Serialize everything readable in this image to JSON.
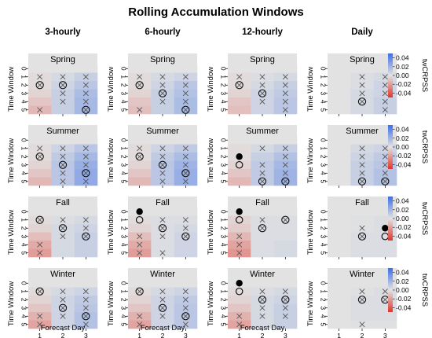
{
  "title": "Rolling Accumulation Windows",
  "columns": [
    "3-hourly",
    "6-hourly",
    "12-hourly",
    "Daily"
  ],
  "rows": [
    "Spring",
    "Summer",
    "Fall",
    "Winter"
  ],
  "xlabel": "Forecast Day",
  "ylabel": "Time Window",
  "xticks": [
    "1",
    "2",
    "3"
  ],
  "yticks": [
    "0",
    "1",
    "2",
    "3",
    "4",
    "5"
  ],
  "colorbar": {
    "label": "twCRPSS",
    "ticks": [
      "0.04",
      "0.02",
      "0.00",
      "-0.02",
      "-0.04"
    ],
    "tick_values": [
      0.04,
      0.02,
      0.0,
      -0.02,
      -0.04
    ],
    "range": [
      -0.05,
      0.05
    ]
  },
  "colors": {
    "positive": "#3a6ee8",
    "negative": "#e0352a",
    "missing": "#e2e2e2"
  },
  "marker_legend": {
    "x": "X marker",
    "circled_x": "circled X marker",
    "open_circle": "open circle",
    "filled_circle": "filled circle"
  },
  "chart_data": {
    "type": "heatmap",
    "title": "Rolling Accumulation Windows",
    "xlabel": "Forecast Day",
    "ylabel": "Time Window",
    "x": [
      1,
      2,
      3
    ],
    "y": [
      0,
      1,
      2,
      3,
      4,
      5
    ],
    "panels": [
      {
        "column": "3-hourly",
        "row": "Spring",
        "values": [
          [
            null,
            null,
            null
          ],
          [
            -0.002,
            0.004,
            0.008
          ],
          [
            -0.002,
            0.006,
            0.012
          ],
          [
            -0.004,
            0.008,
            0.016
          ],
          [
            -0.008,
            0.008,
            0.018
          ],
          [
            -0.012,
            0.008,
            0.018
          ]
        ],
        "markers": [
          [
            null,
            null,
            null
          ],
          [
            "x",
            "x",
            "x"
          ],
          [
            "cx",
            "cx",
            "x"
          ],
          [
            null,
            "x",
            "x"
          ],
          [
            null,
            "x",
            "x"
          ],
          [
            "x",
            null,
            "cx"
          ]
        ]
      },
      {
        "column": "6-hourly",
        "row": "Spring",
        "values": [
          [
            null,
            null,
            null
          ],
          [
            -0.002,
            0.004,
            0.006
          ],
          [
            -0.002,
            0.006,
            0.012
          ],
          [
            -0.004,
            0.008,
            0.014
          ],
          [
            -0.008,
            0.008,
            0.016
          ],
          [
            -0.01,
            0.008,
            0.016
          ]
        ],
        "markers": [
          [
            null,
            null,
            null
          ],
          [
            "x",
            "x",
            "x"
          ],
          [
            "cx",
            "x",
            "x"
          ],
          [
            null,
            "cx",
            "x"
          ],
          [
            null,
            "x",
            "x"
          ],
          [
            "x",
            null,
            "cx"
          ]
        ]
      },
      {
        "column": "12-hourly",
        "row": "Spring",
        "values": [
          [
            null,
            null,
            null
          ],
          [
            -0.002,
            0.002,
            0.004
          ],
          [
            -0.002,
            0.004,
            0.008
          ],
          [
            -0.004,
            0.006,
            0.01
          ],
          [
            -0.008,
            0.006,
            0.012
          ],
          [
            -0.01,
            0.006,
            0.012
          ]
        ],
        "markers": [
          [
            null,
            null,
            null
          ],
          [
            "x",
            "x",
            "x"
          ],
          [
            "cx",
            "x",
            "x"
          ],
          [
            null,
            "cx",
            "x"
          ],
          [
            null,
            "x",
            "x"
          ],
          [
            null,
            null,
            "x"
          ]
        ]
      },
      {
        "column": "Daily",
        "row": "Spring",
        "values": [
          [
            null,
            null,
            null
          ],
          [
            null,
            0.002,
            0.004
          ],
          [
            null,
            0.002,
            0.006
          ],
          [
            null,
            0.004,
            0.006
          ],
          [
            null,
            0.004,
            0.008
          ],
          [
            null,
            0.004,
            0.008
          ]
        ],
        "markers": [
          [
            null,
            null,
            null
          ],
          [
            null,
            "x",
            "x"
          ],
          [
            null,
            "x",
            "x"
          ],
          [
            null,
            "x",
            "x"
          ],
          [
            null,
            "cx",
            "x"
          ],
          [
            null,
            null,
            "x"
          ]
        ]
      },
      {
        "column": "3-hourly",
        "row": "Summer",
        "values": [
          [
            null,
            null,
            null
          ],
          [
            -0.002,
            0.006,
            0.012
          ],
          [
            -0.002,
            0.01,
            0.018
          ],
          [
            -0.004,
            0.012,
            0.022
          ],
          [
            -0.008,
            0.012,
            0.024
          ],
          [
            -0.012,
            0.012,
            0.024
          ]
        ],
        "markers": [
          [
            null,
            null,
            null
          ],
          [
            "x",
            "x",
            "x"
          ],
          [
            "cx",
            "x",
            "x"
          ],
          [
            null,
            "cx",
            "x"
          ],
          [
            null,
            "x",
            "cx"
          ],
          [
            null,
            "x",
            "x"
          ]
        ]
      },
      {
        "column": "6-hourly",
        "row": "Summer",
        "values": [
          [
            null,
            null,
            null
          ],
          [
            -0.002,
            0.006,
            0.01
          ],
          [
            -0.002,
            0.01,
            0.016
          ],
          [
            -0.004,
            0.012,
            0.02
          ],
          [
            -0.008,
            0.012,
            0.022
          ],
          [
            -0.012,
            0.012,
            0.022
          ]
        ],
        "markers": [
          [
            null,
            null,
            null
          ],
          [
            "x",
            "x",
            "x"
          ],
          [
            "cx",
            "x",
            "x"
          ],
          [
            null,
            "cx",
            "x"
          ],
          [
            null,
            "x",
            "cx"
          ],
          [
            null,
            "x",
            "x"
          ]
        ]
      },
      {
        "column": "12-hourly",
        "row": "Summer",
        "values": [
          [
            null,
            null,
            null
          ],
          [
            -0.002,
            0.004,
            0.008
          ],
          [
            -0.002,
            0.008,
            0.014
          ],
          [
            -0.004,
            0.01,
            0.018
          ],
          [
            -0.008,
            0.01,
            0.02
          ],
          [
            -0.012,
            0.01,
            0.02
          ]
        ],
        "markers": [
          [
            null,
            null,
            null
          ],
          [
            null,
            "x",
            "x"
          ],
          [
            "filled",
            null,
            "x"
          ],
          [
            "open",
            "x",
            "x"
          ],
          [
            null,
            "x",
            "x"
          ],
          [
            null,
            "cx",
            "cx"
          ]
        ]
      },
      {
        "column": "Daily",
        "row": "Summer",
        "values": [
          [
            null,
            null,
            null
          ],
          [
            null,
            0.004,
            0.006
          ],
          [
            null,
            0.006,
            0.01
          ],
          [
            null,
            0.008,
            0.012
          ],
          [
            null,
            0.008,
            0.014
          ],
          [
            null,
            0.008,
            0.014
          ]
        ],
        "markers": [
          [
            null,
            null,
            null
          ],
          [
            null,
            "x",
            "x"
          ],
          [
            null,
            "x",
            "x"
          ],
          [
            null,
            "x",
            "x"
          ],
          [
            null,
            "x",
            "x"
          ],
          [
            null,
            "cx",
            "cx"
          ]
        ]
      },
      {
        "column": "3-hourly",
        "row": "Fall",
        "values": [
          [
            null,
            null,
            null
          ],
          [
            -0.002,
            0.002,
            0.004
          ],
          [
            -0.004,
            0.004,
            0.006
          ],
          [
            -0.01,
            0.004,
            0.008
          ],
          [
            -0.016,
            0.004,
            0.008
          ],
          [
            -0.02,
            0.004,
            0.008
          ]
        ],
        "markers": [
          [
            null,
            null,
            null
          ],
          [
            "cx",
            "x",
            "x"
          ],
          [
            null,
            "cx",
            "x"
          ],
          [
            null,
            "x",
            "cx"
          ],
          [
            "x",
            null,
            null
          ],
          [
            "x",
            null,
            null
          ]
        ]
      },
      {
        "column": "6-hourly",
        "row": "Fall",
        "values": [
          [
            null,
            null,
            null
          ],
          [
            -0.002,
            0.002,
            0.002
          ],
          [
            -0.004,
            0.002,
            0.004
          ],
          [
            -0.01,
            0.002,
            0.006
          ],
          [
            -0.016,
            0.002,
            0.006
          ],
          [
            -0.02,
            0.002,
            0.006
          ]
        ],
        "markers": [
          [
            "filled",
            null,
            null
          ],
          [
            "open",
            "x",
            "x"
          ],
          [
            null,
            "cx",
            "x"
          ],
          [
            "x",
            "x",
            "cx"
          ],
          [
            "x",
            null,
            null
          ],
          [
            "x",
            "x",
            null
          ]
        ]
      },
      {
        "column": "12-hourly",
        "row": "Fall",
        "values": [
          [
            null,
            null,
            null
          ],
          [
            -0.004,
            0.002,
            0.002
          ],
          [
            -0.006,
            0.002,
            0.002
          ],
          [
            -0.012,
            0.002,
            0.002
          ],
          [
            -0.018,
            0.002,
            0.004
          ],
          [
            -0.022,
            0.002,
            0.004
          ]
        ],
        "markers": [
          [
            "filled",
            null,
            null
          ],
          [
            "open",
            "x",
            "cx"
          ],
          [
            null,
            "cx",
            null
          ],
          [
            "x",
            null,
            null
          ],
          [
            "x",
            null,
            null
          ],
          [
            "x",
            null,
            null
          ]
        ]
      },
      {
        "column": "Daily",
        "row": "Fall",
        "values": [
          [
            null,
            null,
            null
          ],
          [
            null,
            0.001,
            0.002
          ],
          [
            null,
            0.001,
            0.002
          ],
          [
            null,
            0.002,
            0.002
          ],
          [
            null,
            0.002,
            0.002
          ],
          [
            null,
            0.002,
            0.002
          ]
        ],
        "markers": [
          [
            null,
            null,
            null
          ],
          [
            null,
            null,
            null
          ],
          [
            null,
            "x",
            "filled"
          ],
          [
            null,
            "cx",
            "open"
          ],
          [
            null,
            null,
            null
          ],
          [
            null,
            null,
            null
          ]
        ]
      },
      {
        "column": "3-hourly",
        "row": "Winter",
        "values": [
          [
            null,
            null,
            null
          ],
          [
            -0.002,
            0.004,
            0.006
          ],
          [
            -0.004,
            0.006,
            0.01
          ],
          [
            -0.008,
            0.006,
            0.012
          ],
          [
            -0.014,
            0.006,
            0.014
          ],
          [
            -0.018,
            0.006,
            0.014
          ]
        ],
        "markers": [
          [
            null,
            null,
            null
          ],
          [
            "cx",
            "x",
            "x"
          ],
          [
            null,
            "x",
            "x"
          ],
          [
            null,
            "cx",
            "x"
          ],
          [
            "x",
            "x",
            "cx"
          ],
          [
            "x",
            null,
            "x"
          ]
        ]
      },
      {
        "column": "6-hourly",
        "row": "Winter",
        "values": [
          [
            null,
            null,
            null
          ],
          [
            -0.002,
            0.004,
            0.006
          ],
          [
            -0.004,
            0.006,
            0.01
          ],
          [
            -0.008,
            0.006,
            0.012
          ],
          [
            -0.014,
            0.006,
            0.012
          ],
          [
            -0.018,
            0.006,
            0.012
          ]
        ],
        "markers": [
          [
            null,
            null,
            null
          ],
          [
            "cx",
            "x",
            "x"
          ],
          [
            null,
            "x",
            "x"
          ],
          [
            null,
            "cx",
            "x"
          ],
          [
            "x",
            "x",
            "cx"
          ],
          [
            "x",
            null,
            "x"
          ]
        ]
      },
      {
        "column": "12-hourly",
        "row": "Winter",
        "values": [
          [
            null,
            null,
            null
          ],
          [
            -0.002,
            0.002,
            0.004
          ],
          [
            -0.004,
            0.004,
            0.006
          ],
          [
            -0.008,
            0.004,
            0.008
          ],
          [
            -0.014,
            0.004,
            0.008
          ],
          [
            -0.018,
            0.004,
            0.008
          ]
        ],
        "markers": [
          [
            "filled",
            null,
            null
          ],
          [
            "open",
            "x",
            "x"
          ],
          [
            null,
            "cx",
            "cx"
          ],
          [
            null,
            "x",
            "x"
          ],
          [
            "x",
            "x",
            "x"
          ],
          [
            "x",
            null,
            null
          ]
        ]
      },
      {
        "column": "Daily",
        "row": "Winter",
        "values": [
          [
            null,
            null,
            null
          ],
          [
            null,
            0.001,
            0.002
          ],
          [
            null,
            0.002,
            0.002
          ],
          [
            null,
            0.002,
            0.002
          ],
          [
            null,
            0.002,
            0.002
          ],
          [
            null,
            0.001,
            0.001
          ]
        ],
        "markers": [
          [
            null,
            null,
            null
          ],
          [
            null,
            "x",
            "x"
          ],
          [
            null,
            "cx",
            "cx"
          ],
          [
            null,
            null,
            null
          ],
          [
            null,
            null,
            null
          ],
          [
            null,
            "x",
            null
          ]
        ]
      }
    ]
  }
}
